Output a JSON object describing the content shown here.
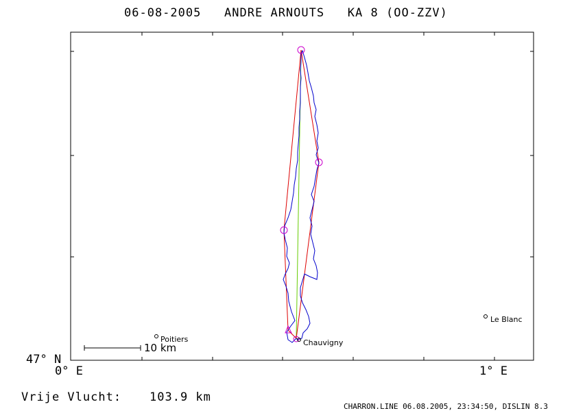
{
  "title": "06-08-2005   ANDRE ARNOUTS   KA 8 (OO-ZZV)",
  "axes": {
    "x_tick_labels": [
      "0° E",
      "1° E"
    ],
    "y_tick_labels": [
      "47° N"
    ]
  },
  "places": [
    {
      "name": "Poitiers"
    },
    {
      "name": "Chauvigny"
    },
    {
      "name": "Le Blanc"
    }
  ],
  "scale_bar": {
    "label": "10 km"
  },
  "distance_label": "Vrije Vlucht:",
  "distance_value": "103.9 km",
  "footer": "CHARRON.LINE 06.08.2005, 23:34:50, DISLIN 8.3",
  "colors": {
    "track": "#0000cc",
    "route": "#dd0000",
    "straight": "#66cc00",
    "turnpoint": "#cc00cc",
    "frame": "#000000"
  },
  "icons": [
    "turnpoint-circle-icon",
    "start-triangle-icon",
    "town-dot-icon"
  ]
}
